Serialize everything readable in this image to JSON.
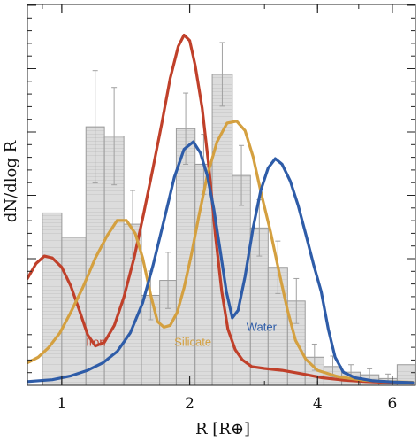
{
  "chart_data": {
    "type": "line",
    "xlabel": "R [R⊕]",
    "ylabel": "dN/dlog R",
    "xscale": "log",
    "xlim": [
      0.83,
      6.8
    ],
    "ylim": [
      0,
      1.0
    ],
    "xticks": [
      {
        "value": 1,
        "label": "1"
      },
      {
        "value": 2,
        "label": "2"
      },
      {
        "value": 4,
        "label": "4"
      },
      {
        "value": 6,
        "label": "6"
      }
    ],
    "histogram": {
      "color": "#dcdcdc",
      "bins": [
        {
          "x0": 0.9,
          "x1": 1.0,
          "y": 0.46,
          "err": 0
        },
        {
          "x0": 1.0,
          "x1": 1.14,
          "y": 0.395,
          "err": 0
        },
        {
          "x0": 1.14,
          "x1": 1.26,
          "y": 0.69,
          "err": 0.15
        },
        {
          "x0": 1.26,
          "x1": 1.4,
          "y": 0.665,
          "err": 0.13
        },
        {
          "x0": 1.4,
          "x1": 1.54,
          "y": 0.43,
          "err": 0.09
        },
        {
          "x0": 1.54,
          "x1": 1.7,
          "y": 0.24,
          "err": 0.065
        },
        {
          "x0": 1.7,
          "x1": 1.86,
          "y": 0.28,
          "err": 0.075
        },
        {
          "x0": 1.86,
          "x1": 2.06,
          "y": 0.685,
          "err": 0.095
        },
        {
          "x0": 2.06,
          "x1": 2.26,
          "y": 0.59,
          "err": 0.08
        },
        {
          "x0": 2.26,
          "x1": 2.52,
          "y": 0.83,
          "err": 0.085
        },
        {
          "x0": 2.52,
          "x1": 2.78,
          "y": 0.56,
          "err": 0.08
        },
        {
          "x0": 2.78,
          "x1": 3.06,
          "y": 0.42,
          "err": 0.075
        },
        {
          "x0": 3.06,
          "x1": 3.4,
          "y": 0.315,
          "err": 0.07
        },
        {
          "x0": 3.4,
          "x1": 3.74,
          "y": 0.225,
          "err": 0.06
        },
        {
          "x0": 3.74,
          "x1": 4.14,
          "y": 0.075,
          "err": 0.035
        },
        {
          "x0": 4.14,
          "x1": 4.56,
          "y": 0.05,
          "err": 0.028
        },
        {
          "x0": 4.56,
          "x1": 5.04,
          "y": 0.035,
          "err": 0.02
        },
        {
          "x0": 5.04,
          "x1": 5.58,
          "y": 0.028,
          "err": 0.016
        },
        {
          "x0": 5.58,
          "x1": 6.16,
          "y": 0.018,
          "err": 0.012
        },
        {
          "x0": 6.16,
          "x1": 6.78,
          "y": 0.055,
          "err": 0
        }
      ]
    },
    "series": [
      {
        "name": "Iron",
        "color": "#c0402a",
        "points": [
          [
            0.83,
            0.285
          ],
          [
            0.87,
            0.325
          ],
          [
            0.91,
            0.345
          ],
          [
            0.95,
            0.34
          ],
          [
            1.0,
            0.315
          ],
          [
            1.05,
            0.265
          ],
          [
            1.1,
            0.2
          ],
          [
            1.15,
            0.135
          ],
          [
            1.2,
            0.105
          ],
          [
            1.26,
            0.115
          ],
          [
            1.33,
            0.16
          ],
          [
            1.4,
            0.235
          ],
          [
            1.48,
            0.34
          ],
          [
            1.56,
            0.46
          ],
          [
            1.64,
            0.58
          ],
          [
            1.72,
            0.7
          ],
          [
            1.8,
            0.82
          ],
          [
            1.88,
            0.905
          ],
          [
            1.94,
            0.935
          ],
          [
            2.0,
            0.92
          ],
          [
            2.06,
            0.855
          ],
          [
            2.14,
            0.74
          ],
          [
            2.22,
            0.58
          ],
          [
            2.3,
            0.4
          ],
          [
            2.38,
            0.25
          ],
          [
            2.46,
            0.15
          ],
          [
            2.56,
            0.095
          ],
          [
            2.66,
            0.068
          ],
          [
            2.8,
            0.05
          ],
          [
            3.0,
            0.045
          ],
          [
            3.3,
            0.04
          ],
          [
            3.7,
            0.03
          ],
          [
            4.1,
            0.02
          ],
          [
            4.6,
            0.014
          ],
          [
            5.2,
            0.01
          ],
          [
            5.8,
            0.008
          ],
          [
            6.7,
            0.006
          ]
        ]
      },
      {
        "name": "Silicate",
        "color": "#d4a040",
        "points": [
          [
            0.83,
            0.06
          ],
          [
            0.88,
            0.075
          ],
          [
            0.93,
            0.1
          ],
          [
            0.99,
            0.14
          ],
          [
            1.05,
            0.195
          ],
          [
            1.12,
            0.26
          ],
          [
            1.2,
            0.34
          ],
          [
            1.28,
            0.4
          ],
          [
            1.35,
            0.44
          ],
          [
            1.42,
            0.44
          ],
          [
            1.49,
            0.405
          ],
          [
            1.55,
            0.34
          ],
          [
            1.62,
            0.24
          ],
          [
            1.68,
            0.17
          ],
          [
            1.74,
            0.155
          ],
          [
            1.8,
            0.16
          ],
          [
            1.87,
            0.195
          ],
          [
            1.94,
            0.26
          ],
          [
            2.02,
            0.35
          ],
          [
            2.1,
            0.45
          ],
          [
            2.2,
            0.56
          ],
          [
            2.32,
            0.65
          ],
          [
            2.45,
            0.7
          ],
          [
            2.58,
            0.705
          ],
          [
            2.7,
            0.68
          ],
          [
            2.82,
            0.61
          ],
          [
            2.95,
            0.51
          ],
          [
            3.1,
            0.41
          ],
          [
            3.25,
            0.3
          ],
          [
            3.4,
            0.2
          ],
          [
            3.55,
            0.12
          ],
          [
            3.75,
            0.07
          ],
          [
            4.0,
            0.04
          ],
          [
            4.5,
            0.022
          ],
          [
            5.1,
            0.014
          ],
          [
            5.8,
            0.01
          ],
          [
            6.7,
            0.008
          ]
        ]
      },
      {
        "name": "Water",
        "color": "#2e5ca8",
        "points": [
          [
            0.83,
            0.01
          ],
          [
            0.95,
            0.015
          ],
          [
            1.05,
            0.025
          ],
          [
            1.15,
            0.04
          ],
          [
            1.25,
            0.06
          ],
          [
            1.35,
            0.09
          ],
          [
            1.45,
            0.14
          ],
          [
            1.55,
            0.22
          ],
          [
            1.64,
            0.32
          ],
          [
            1.74,
            0.44
          ],
          [
            1.84,
            0.555
          ],
          [
            1.94,
            0.63
          ],
          [
            2.04,
            0.65
          ],
          [
            2.12,
            0.62
          ],
          [
            2.2,
            0.56
          ],
          [
            2.28,
            0.47
          ],
          [
            2.36,
            0.36
          ],
          [
            2.44,
            0.25
          ],
          [
            2.52,
            0.18
          ],
          [
            2.6,
            0.2
          ],
          [
            2.7,
            0.29
          ],
          [
            2.82,
            0.42
          ],
          [
            2.94,
            0.52
          ],
          [
            3.06,
            0.58
          ],
          [
            3.18,
            0.605
          ],
          [
            3.3,
            0.59
          ],
          [
            3.45,
            0.545
          ],
          [
            3.6,
            0.48
          ],
          [
            3.76,
            0.4
          ],
          [
            3.92,
            0.32
          ],
          [
            4.08,
            0.25
          ],
          [
            4.24,
            0.15
          ],
          [
            4.4,
            0.075
          ],
          [
            4.6,
            0.035
          ],
          [
            4.9,
            0.02
          ],
          [
            5.4,
            0.012
          ],
          [
            6.0,
            0.009
          ],
          [
            6.7,
            0.007
          ]
        ]
      }
    ],
    "annotations": [
      {
        "text": "Iron",
        "x": 1.14,
        "y": 0.105,
        "series": "Iron"
      },
      {
        "text": "Silicate",
        "x": 1.84,
        "y": 0.105,
        "series": "Silicate"
      },
      {
        "text": "Water",
        "x": 2.72,
        "y": 0.145,
        "series": "Water"
      }
    ]
  }
}
